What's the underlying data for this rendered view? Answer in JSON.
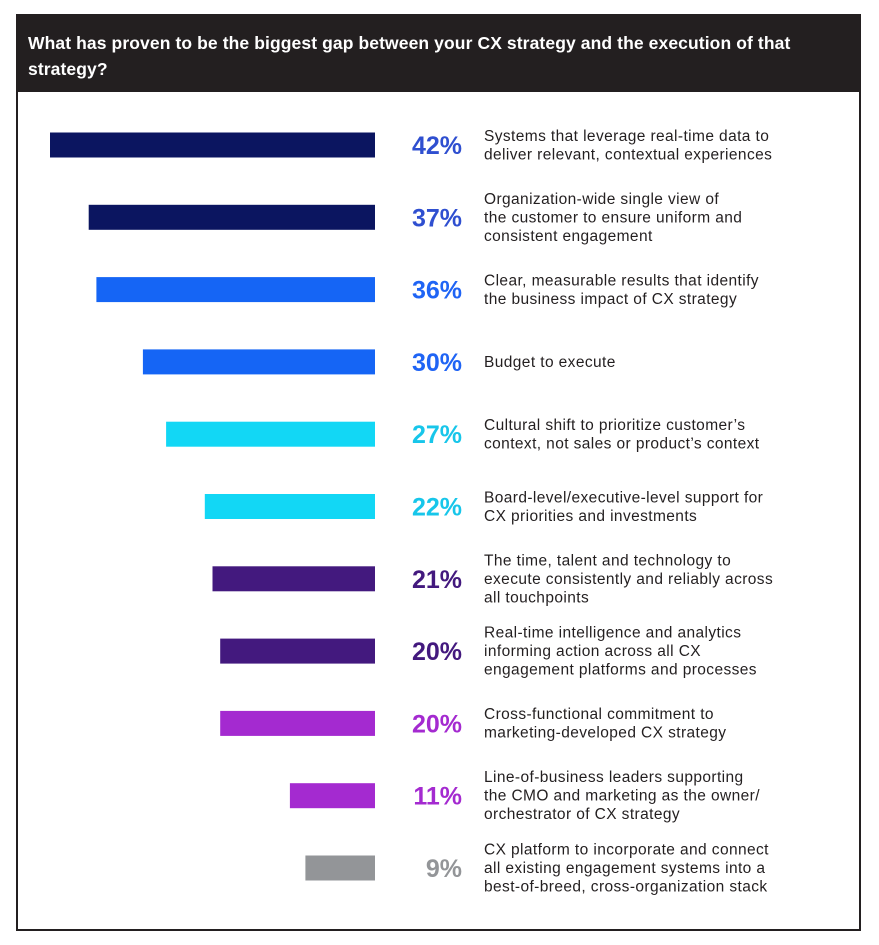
{
  "chart_data": {
    "type": "bar",
    "orientation": "horizontal",
    "title": "What has proven to be the biggest gap between your CX strategy and the execution of that strategy?",
    "unit": "%",
    "items": [
      {
        "label": [
          "Systems that leverage real-time data to",
          "deliver relevant, contextual experiences"
        ],
        "value": 42,
        "value_label": "42%",
        "color": "#0b1560"
      },
      {
        "label": [
          "Organization-wide single view of",
          "the customer to ensure uniform and",
          "consistent engagement"
        ],
        "value": 37,
        "value_label": "37%",
        "color": "#0b1560"
      },
      {
        "label": [
          "Clear, measurable results that identify",
          "the business impact of CX strategy"
        ],
        "value": 36,
        "value_label": "36%",
        "color": "#1565f5"
      },
      {
        "label": [
          "Budget to execute"
        ],
        "value": 30,
        "value_label": "30%",
        "color": "#1565f5"
      },
      {
        "label": [
          "Cultural shift to prioritize customer’s",
          "context, not sales or product’s context"
        ],
        "value": 27,
        "value_label": "27%",
        "color": "#12d7f5"
      },
      {
        "label": [
          "Board-level/executive-level support for",
          "CX priorities and investments"
        ],
        "value": 22,
        "value_label": "22%",
        "color": "#12d7f5"
      },
      {
        "label": [
          "The time, talent and technology to",
          "execute consistently and reliably across",
          "all touchpoints"
        ],
        "value": 21,
        "value_label": "21%",
        "color": "#43197e"
      },
      {
        "label": [
          "Real-time intelligence and analytics",
          "informing action across all CX",
          "engagement platforms and processes"
        ],
        "value": 20,
        "value_label": "20%",
        "color": "#43197e"
      },
      {
        "label": [
          "Cross-functional commitment to",
          "marketing-developed CX strategy"
        ],
        "value": 20,
        "value_label": "20%",
        "color": "#a42ad0"
      },
      {
        "label": [
          "Line-of-business leaders supporting",
          "the CMO and marketing as the owner/",
          "orchestrator of CX strategy"
        ],
        "value": 11,
        "value_label": "11%",
        "color": "#a42ad0"
      },
      {
        "label": [
          "CX platform to incorporate and connect",
          "all existing engagement systems into a",
          "best-of-breed, cross-organization stack"
        ],
        "value": 9,
        "value_label": "9%",
        "color": "#939598"
      }
    ],
    "pct_colors": {
      "42%": "#2f4fd0",
      "37%": "#2f4fd0",
      "36%": "#1f64f5",
      "30%": "#1f64f5",
      "27%": "#17c6ea",
      "22%": "#17c6ea",
      "21%": "#43197e",
      "20%": "#43197e",
      "11%": "#a42ad0",
      "9%": "#939598"
    },
    "value_colors": [
      "#2f4fd0",
      "#2f4fd0",
      "#1f64f5",
      "#1f64f5",
      "#17c6ea",
      "#17c6ea",
      "#43197e",
      "#43197e",
      "#a42ad0",
      "#a42ad0",
      "#939598"
    ],
    "xlim": [
      0,
      42
    ],
    "grid": false,
    "legend": "none"
  }
}
